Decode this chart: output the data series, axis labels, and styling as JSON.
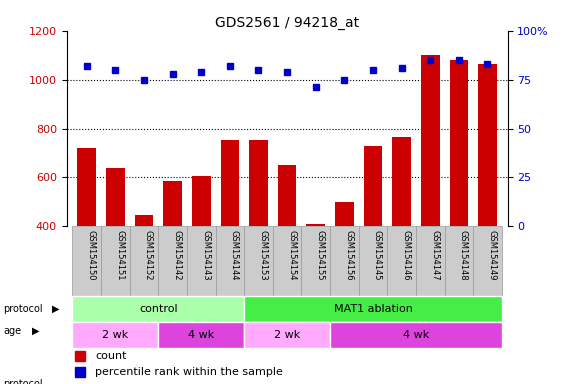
{
  "title": "GDS2561 / 94218_at",
  "samples": [
    "GSM154150",
    "GSM154151",
    "GSM154152",
    "GSM154142",
    "GSM154143",
    "GSM154144",
    "GSM154153",
    "GSM154154",
    "GSM154155",
    "GSM154156",
    "GSM154145",
    "GSM154146",
    "GSM154147",
    "GSM154148",
    "GSM154149"
  ],
  "counts": [
    720,
    640,
    445,
    585,
    605,
    755,
    755,
    650,
    408,
    500,
    730,
    765,
    1100,
    1080,
    1065
  ],
  "percentile_ranks": [
    82,
    80,
    75,
    78,
    79,
    82,
    80,
    79,
    71,
    75,
    80,
    81,
    85,
    85,
    83
  ],
  "left_ylim": [
    400,
    1200
  ],
  "right_ylim": [
    0,
    100
  ],
  "left_yticks": [
    400,
    600,
    800,
    1000,
    1200
  ],
  "right_yticks": [
    0,
    25,
    50,
    75,
    100
  ],
  "right_yticklabels": [
    "0",
    "25",
    "50",
    "75",
    "100%"
  ],
  "bar_color": "#cc0000",
  "dot_color": "#0000cc",
  "grid_color": "#000000",
  "bar_width": 0.65,
  "protocol_groups": [
    {
      "label": "control",
      "start": 0,
      "end": 6,
      "color": "#aaffaa"
    },
    {
      "label": "MAT1 ablation",
      "start": 6,
      "end": 15,
      "color": "#44ee44"
    }
  ],
  "age_groups": [
    {
      "label": "2 wk",
      "start": 0,
      "end": 3,
      "color": "#ffaaff"
    },
    {
      "label": "4 wk",
      "start": 3,
      "end": 6,
      "color": "#dd44dd"
    },
    {
      "label": "2 wk",
      "start": 6,
      "end": 9,
      "color": "#ffaaff"
    },
    {
      "label": "4 wk",
      "start": 9,
      "end": 15,
      "color": "#dd44dd"
    }
  ],
  "legend_count_color": "#cc0000",
  "legend_dot_color": "#0000cc",
  "tick_label_color_left": "#cc0000",
  "tick_label_color_right": "#0000cc",
  "xticklabel_bg": "#cccccc",
  "xticklabel_border": "#999999"
}
